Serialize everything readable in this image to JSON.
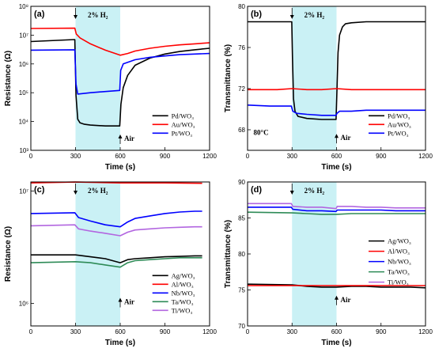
{
  "chart_data": [
    {
      "panel": "(a)",
      "type": "line",
      "xlabel": "Time (s)",
      "ylabel": "Resistance (Ω)",
      "xlim": [
        0,
        1200
      ],
      "ylim_log10": [
        3,
        8
      ],
      "yscale": "log",
      "xticks": [
        "0",
        "300",
        "600",
        "900",
        "1200"
      ],
      "yticks": [
        "10³",
        "10⁴",
        "10⁵",
        "10⁶",
        "10⁷",
        "10⁸"
      ],
      "shaded_region": [
        300,
        600
      ],
      "annotations": {
        "gas": "2% H₂",
        "air": "Air"
      },
      "legend_position": "lower-right",
      "series": [
        {
          "name": "Pd/WO₃",
          "color": "#000000",
          "x": [
            0,
            295,
            303,
            315,
            330,
            360,
            400,
            500,
            597,
            605,
            620,
            650,
            700,
            800,
            900,
            1000,
            1100,
            1200
          ],
          "y": [
            6000000.0,
            7000000.0,
            80000.0,
            12000.0,
            9000.0,
            8000.0,
            7500.0,
            7000.0,
            7000.0,
            40000.0,
            150000.0,
            400000.0,
            900000.0,
            1600000.0,
            2200000.0,
            2700000.0,
            3100000.0,
            3500000.0
          ]
        },
        {
          "name": "Au/WO₃",
          "color": "#ff0000",
          "x": [
            0,
            295,
            305,
            330,
            400,
            500,
            600,
            650,
            700,
            800,
            900,
            1000,
            1100,
            1200
          ],
          "y": [
            17000000.0,
            17500000.0,
            11000000.0,
            8000000.0,
            5000000.0,
            3000000.0,
            2000000.0,
            2300000.0,
            2800000.0,
            3500000.0,
            4100000.0,
            4600000.0,
            5000000.0,
            5400000.0
          ]
        },
        {
          "name": "Pt/WO₃",
          "color": "#0000ff",
          "x": [
            0,
            295,
            303,
            315,
            400,
            500,
            597,
            603,
            620,
            700,
            800,
            900,
            1000,
            1100,
            1200
          ],
          "y": [
            3000000.0,
            3100000.0,
            200000.0,
            90000.0,
            100000.0,
            110000.0,
            120000.0,
            600000.0,
            1000000.0,
            1400000.0,
            1700000.0,
            1900000.0,
            2100000.0,
            2200000.0,
            2300000.0
          ]
        }
      ]
    },
    {
      "panel": "(b)",
      "type": "line",
      "xlabel": "Time (s)",
      "ylabel": "Transmittance (%)",
      "xlim": [
        0,
        1200
      ],
      "ylim": [
        66,
        80
      ],
      "xticks": [
        "0",
        "300",
        "600",
        "900",
        "1200"
      ],
      "yticks": [
        "68",
        "72",
        "76",
        "80"
      ],
      "shaded_region": [
        300,
        600
      ],
      "annotations": {
        "gas": "2% H₂",
        "air": "Air",
        "temperature": "80°C"
      },
      "legend_position": "lower-right",
      "series": [
        {
          "name": "Pd/WO₃",
          "color": "#000000",
          "x": [
            0,
            298,
            303,
            310,
            320,
            340,
            400,
            500,
            597,
            603,
            610,
            620,
            640,
            660,
            700,
            800,
            900,
            1000,
            1100,
            1200
          ],
          "y": [
            78.5,
            78.5,
            75.0,
            71.0,
            69.8,
            69.3,
            69.1,
            69.0,
            69.0,
            72.0,
            75.5,
            77.2,
            78.0,
            78.3,
            78.4,
            78.5,
            78.5,
            78.5,
            78.5,
            78.5
          ]
        },
        {
          "name": "Au/WO₃",
          "color": "#ff0000",
          "x": [
            0,
            100,
            200,
            300,
            400,
            500,
            600,
            700,
            800,
            900,
            1000,
            1100,
            1200
          ],
          "y": [
            71.9,
            71.9,
            71.9,
            72.0,
            71.9,
            71.9,
            72.0,
            71.9,
            71.9,
            71.9,
            71.9,
            71.9,
            71.9
          ]
        },
        {
          "name": "Pt/WO₃",
          "color": "#0000ff",
          "x": [
            0,
            150,
            295,
            305,
            330,
            400,
            500,
            597,
            603,
            620,
            700,
            800,
            900,
            1000,
            1100,
            1200
          ],
          "y": [
            70.4,
            70.3,
            70.3,
            69.8,
            69.6,
            69.5,
            69.4,
            69.4,
            69.6,
            69.8,
            69.8,
            69.9,
            69.9,
            69.9,
            69.9,
            69.9
          ]
        }
      ]
    },
    {
      "panel": "(c)",
      "type": "line",
      "xlabel": "Time (s)",
      "ylabel": "Resistance (Ω)",
      "xlim": [
        0,
        1200
      ],
      "ylim_log10": [
        5.8,
        7.08
      ],
      "yscale": "log",
      "xticks": [
        "0",
        "300",
        "600",
        "900",
        "1200"
      ],
      "yticks": [
        "10⁶",
        "10⁷"
      ],
      "shaded_region": [
        300,
        600
      ],
      "annotations": {
        "gas": "2% H₂",
        "air": "Air"
      },
      "legend_position": "lower-right",
      "series": [
        {
          "name": "Ag/WO₃",
          "color": "#000000",
          "x": [
            0,
            300,
            400,
            500,
            600,
            650,
            700,
            800,
            900,
            1000,
            1100,
            1150
          ],
          "y": [
            2700000.0,
            2700000.0,
            2600000.0,
            2500000.0,
            2300000.0,
            2450000.0,
            2500000.0,
            2550000.0,
            2600000.0,
            2620000.0,
            2650000.0,
            2650000.0
          ]
        },
        {
          "name": "Al/WO₃",
          "color": "#ff0000",
          "x": [
            0,
            300,
            600,
            900,
            1150
          ],
          "y": [
            11800000.0,
            12000000.0,
            11800000.0,
            11800000.0,
            11700000.0
          ]
        },
        {
          "name": "Nb/WO₃",
          "color": "#0000ff",
          "x": [
            0,
            295,
            320,
            400,
            500,
            600,
            650,
            700,
            800,
            900,
            1000,
            1100,
            1150
          ],
          "y": [
            6300000.0,
            6400000.0,
            5800000.0,
            5400000.0,
            5000000.0,
            4800000.0,
            5300000.0,
            5700000.0,
            6000000.0,
            6300000.0,
            6500000.0,
            6600000.0,
            6600000.0
          ]
        },
        {
          "name": "Ta/WO₃",
          "color": "#2e8b57",
          "x": [
            0,
            300,
            400,
            500,
            600,
            650,
            700,
            800,
            900,
            1000,
            1100,
            1150
          ],
          "y": [
            2300000.0,
            2350000.0,
            2300000.0,
            2200000.0,
            2100000.0,
            2300000.0,
            2400000.0,
            2450000.0,
            2500000.0,
            2550000.0,
            2550000.0,
            2550000.0
          ]
        },
        {
          "name": "Ti/WO₃",
          "color": "#b266e0",
          "x": [
            0,
            295,
            320,
            400,
            500,
            600,
            650,
            700,
            800,
            900,
            1000,
            1100,
            1150
          ],
          "y": [
            4900000.0,
            5000000.0,
            4600000.0,
            4400000.0,
            4200000.0,
            4000000.0,
            4300000.0,
            4500000.0,
            4600000.0,
            4700000.0,
            4750000.0,
            4800000.0,
            4800000.0
          ]
        }
      ]
    },
    {
      "panel": "(d)",
      "type": "line",
      "xlabel": "Time (s)",
      "ylabel": "Transmittance (%)",
      "xlim": [
        0,
        1200
      ],
      "ylim": [
        70,
        90
      ],
      "xticks": [
        "0",
        "300",
        "600",
        "900",
        "1200"
      ],
      "yticks": [
        "70",
        "75",
        "80",
        "85",
        "90"
      ],
      "shaded_region": [
        300,
        600
      ],
      "annotations": {
        "gas": "2% H₂",
        "air": "Air"
      },
      "legend_position": "right",
      "series": [
        {
          "name": "Ag/WO₃",
          "color": "#000000",
          "x": [
            0,
            300,
            400,
            500,
            600,
            700,
            800,
            900,
            1000,
            1100,
            1200
          ],
          "y": [
            75.8,
            75.7,
            75.5,
            75.4,
            75.4,
            75.5,
            75.5,
            75.4,
            75.4,
            75.4,
            75.3
          ]
        },
        {
          "name": "Al/WO₃",
          "color": "#ff0000",
          "x": [
            0,
            300,
            600,
            900,
            1200
          ],
          "y": [
            75.6,
            75.6,
            75.6,
            75.6,
            75.6
          ]
        },
        {
          "name": "Nb/WO₃",
          "color": "#0000ff",
          "x": [
            0,
            295,
            305,
            400,
            500,
            597,
            605,
            700,
            800,
            900,
            1000,
            1100,
            1200
          ],
          "y": [
            86.5,
            86.5,
            86.2,
            86.0,
            86.0,
            85.9,
            86.1,
            86.1,
            86.1,
            86.1,
            86.0,
            86.0,
            86.0
          ]
        },
        {
          "name": "Ta/WO₃",
          "color": "#2e8b57",
          "x": [
            0,
            300,
            400,
            500,
            600,
            700,
            800,
            900,
            1000,
            1100,
            1200
          ],
          "y": [
            85.8,
            85.7,
            85.6,
            85.5,
            85.5,
            85.6,
            85.6,
            85.6,
            85.6,
            85.6,
            85.6
          ]
        },
        {
          "name": "Ti/WO₃",
          "color": "#b266e0",
          "x": [
            0,
            295,
            305,
            400,
            500,
            597,
            605,
            700,
            800,
            900,
            1000,
            1100,
            1200
          ],
          "y": [
            87.0,
            87.0,
            86.6,
            86.5,
            86.5,
            86.3,
            86.6,
            86.6,
            86.5,
            86.5,
            86.4,
            86.4,
            86.4
          ]
        }
      ]
    }
  ]
}
